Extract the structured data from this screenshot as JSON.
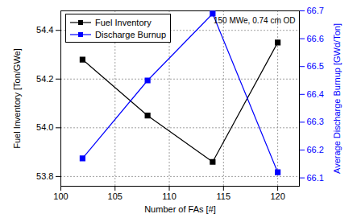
{
  "chart_data": {
    "type": "line",
    "annotations": [
      "150 MWe, 0.74 cm OD"
    ],
    "x_label": "Number of FAs [#]",
    "y_label": "Fuel Inventory [Ton/GWe]",
    "y2_label": "Average Discharge Burnup [GWd/Ton]",
    "x": [
      102,
      108,
      114,
      120
    ],
    "series": [
      {
        "name": "Fuel Inventory",
        "color": "#000000",
        "marker": "square",
        "values": [
          54.28,
          54.05,
          53.86,
          54.35
        ]
      },
      {
        "name": "Discharge Burnup",
        "color": "#0000ff",
        "marker": "square",
        "axis": "y2",
        "values": [
          66.17,
          66.45,
          66.69,
          66.12
        ]
      }
    ],
    "xlim": [
      100,
      122
    ],
    "xticks": [
      100,
      105,
      110,
      115,
      120
    ],
    "ylim": [
      53.76,
      54.48
    ],
    "yticks": [
      53.8,
      {
        "value": 54,
        "label": "54.0"
      },
      54.2,
      54.4
    ],
    "y2lim": [
      66.07,
      66.7
    ],
    "y2ticks": [
      66.1,
      66.2,
      66.3,
      66.4,
      66.5,
      66.6,
      66.7
    ],
    "grid": true,
    "legend": "top-left"
  }
}
